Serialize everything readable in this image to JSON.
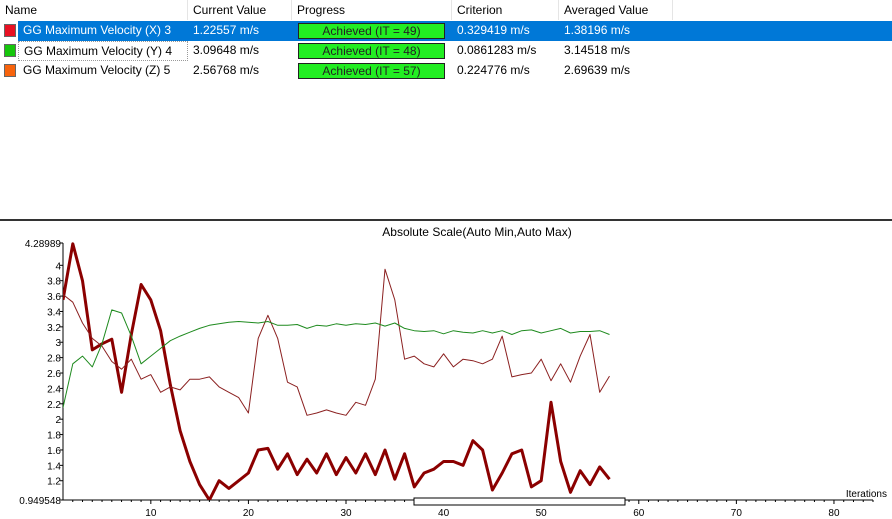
{
  "table": {
    "columns": [
      "Name",
      "Current Value",
      "Progress",
      "Criterion",
      "Averaged Value"
    ],
    "rows": [
      {
        "name": "GG Maximum Velocity (X) 3",
        "current": "1.22557 m/s",
        "progress": "Achieved (IT = 49)",
        "criterion": "0.329419 m/s",
        "averaged": "1.38196 m/s",
        "color": "#e81123",
        "selected": true
      },
      {
        "name": "GG Maximum Velocity (Y) 4",
        "current": "3.09648 m/s",
        "progress": "Achieved (IT = 48)",
        "criterion": "0.0861283 m/s",
        "averaged": "3.14518 m/s",
        "color": "#16c60c",
        "selected": false
      },
      {
        "name": "GG Maximum Velocity (Z) 5",
        "current": "2.56768 m/s",
        "progress": "Achieved (IT = 57)",
        "criterion": "0.224776 m/s",
        "averaged": "2.69639 m/s",
        "color": "#f7630c",
        "selected": false
      }
    ],
    "progress_color": "#22ee22"
  },
  "chart_data": {
    "type": "line",
    "title": "Absolute Scale(Auto Min,Auto Max)",
    "xlabel": "Iterations",
    "ylabel": "",
    "xlim": [
      1,
      84
    ],
    "ylim": [
      0.949548,
      4.28989
    ],
    "y_ticks": [
      "4.28989",
      "4",
      "3.8",
      "3.6",
      "3.4",
      "3.2",
      "3",
      "2.8",
      "2.6",
      "2.4",
      "2.2",
      "2",
      "1.8",
      "1.6",
      "1.4",
      "1.2",
      "0.949548"
    ],
    "x_ticks": [
      "10",
      "20",
      "30",
      "40",
      "50",
      "60",
      "70",
      "80"
    ],
    "grid": false,
    "legend": "none",
    "series": [
      {
        "color": "#8b0000",
        "width": 3,
        "x": [
          1,
          2,
          3,
          4,
          5,
          6,
          7,
          8,
          9,
          10,
          11,
          12,
          13,
          14,
          15,
          16,
          17,
          18,
          19,
          20,
          21,
          22,
          23,
          24,
          25,
          26,
          27,
          28,
          29,
          30,
          31,
          32,
          33,
          34,
          35,
          36,
          37,
          38,
          39,
          40,
          41,
          42,
          43,
          44,
          45,
          46,
          47,
          48,
          49,
          50,
          51,
          52,
          53,
          54,
          55,
          56,
          57
        ],
        "y": [
          3.55,
          4.28,
          3.8,
          2.9,
          2.98,
          3.04,
          2.35,
          3.1,
          3.75,
          3.55,
          3.15,
          2.45,
          1.85,
          1.45,
          1.15,
          0.95,
          1.2,
          1.1,
          1.2,
          1.3,
          1.6,
          1.62,
          1.35,
          1.55,
          1.28,
          1.48,
          1.3,
          1.55,
          1.28,
          1.5,
          1.3,
          1.55,
          1.28,
          1.6,
          1.22,
          1.55,
          1.12,
          1.3,
          1.35,
          1.45,
          1.45,
          1.4,
          1.72,
          1.6,
          1.08,
          1.3,
          1.55,
          1.6,
          1.12,
          1.2,
          2.22,
          1.45,
          1.05,
          1.33,
          1.15,
          1.38,
          1.22
        ]
      },
      {
        "color": "#8b2020",
        "width": 1,
        "x": [
          1,
          2,
          3,
          4,
          5,
          6,
          7,
          8,
          9,
          10,
          11,
          12,
          13,
          14,
          15,
          16,
          17,
          18,
          19,
          20,
          21,
          22,
          23,
          24,
          25,
          26,
          27,
          28,
          29,
          30,
          31,
          32,
          33,
          34,
          35,
          36,
          37,
          38,
          39,
          40,
          41,
          42,
          43,
          44,
          45,
          46,
          47,
          48,
          49,
          50,
          51,
          52,
          53,
          54,
          55,
          56,
          57
        ],
        "y": [
          3.62,
          3.52,
          3.25,
          3.05,
          2.95,
          2.75,
          2.65,
          2.78,
          2.52,
          2.58,
          2.35,
          2.42,
          2.38,
          2.52,
          2.52,
          2.55,
          2.42,
          2.35,
          2.28,
          2.08,
          3.05,
          3.35,
          3.05,
          2.48,
          2.42,
          2.05,
          2.08,
          2.12,
          2.08,
          2.05,
          2.22,
          2.18,
          2.52,
          3.95,
          3.55,
          2.78,
          2.82,
          2.72,
          2.68,
          2.85,
          2.68,
          2.78,
          2.76,
          2.72,
          2.78,
          3.08,
          2.55,
          2.58,
          2.6,
          2.78,
          2.5,
          2.72,
          2.48,
          2.82,
          3.1,
          2.35,
          2.56
        ]
      },
      {
        "color": "#1e8a1e",
        "width": 1,
        "x": [
          1,
          2,
          3,
          4,
          5,
          6,
          7,
          8,
          9,
          10,
          11,
          12,
          13,
          14,
          15,
          16,
          17,
          18,
          19,
          20,
          21,
          22,
          23,
          24,
          25,
          26,
          27,
          28,
          29,
          30,
          31,
          32,
          33,
          34,
          35,
          36,
          37,
          38,
          39,
          40,
          41,
          42,
          43,
          44,
          45,
          46,
          47,
          48,
          49,
          50,
          51,
          52,
          53,
          54,
          55,
          56,
          57
        ],
        "y": [
          2.15,
          2.72,
          2.82,
          2.68,
          2.98,
          3.42,
          3.38,
          3.08,
          2.72,
          2.82,
          2.92,
          3.02,
          3.08,
          3.13,
          3.18,
          3.22,
          3.24,
          3.26,
          3.27,
          3.26,
          3.25,
          3.27,
          3.22,
          3.22,
          3.23,
          3.18,
          3.22,
          3.21,
          3.24,
          3.22,
          3.24,
          3.23,
          3.25,
          3.21,
          3.25,
          3.18,
          3.15,
          3.14,
          3.15,
          3.11,
          3.15,
          3.13,
          3.12,
          3.15,
          3.12,
          3.15,
          3.1,
          3.15,
          3.16,
          3.12,
          3.15,
          3.18,
          3.12,
          3.14,
          3.14,
          3.15,
          3.1
        ]
      }
    ]
  }
}
